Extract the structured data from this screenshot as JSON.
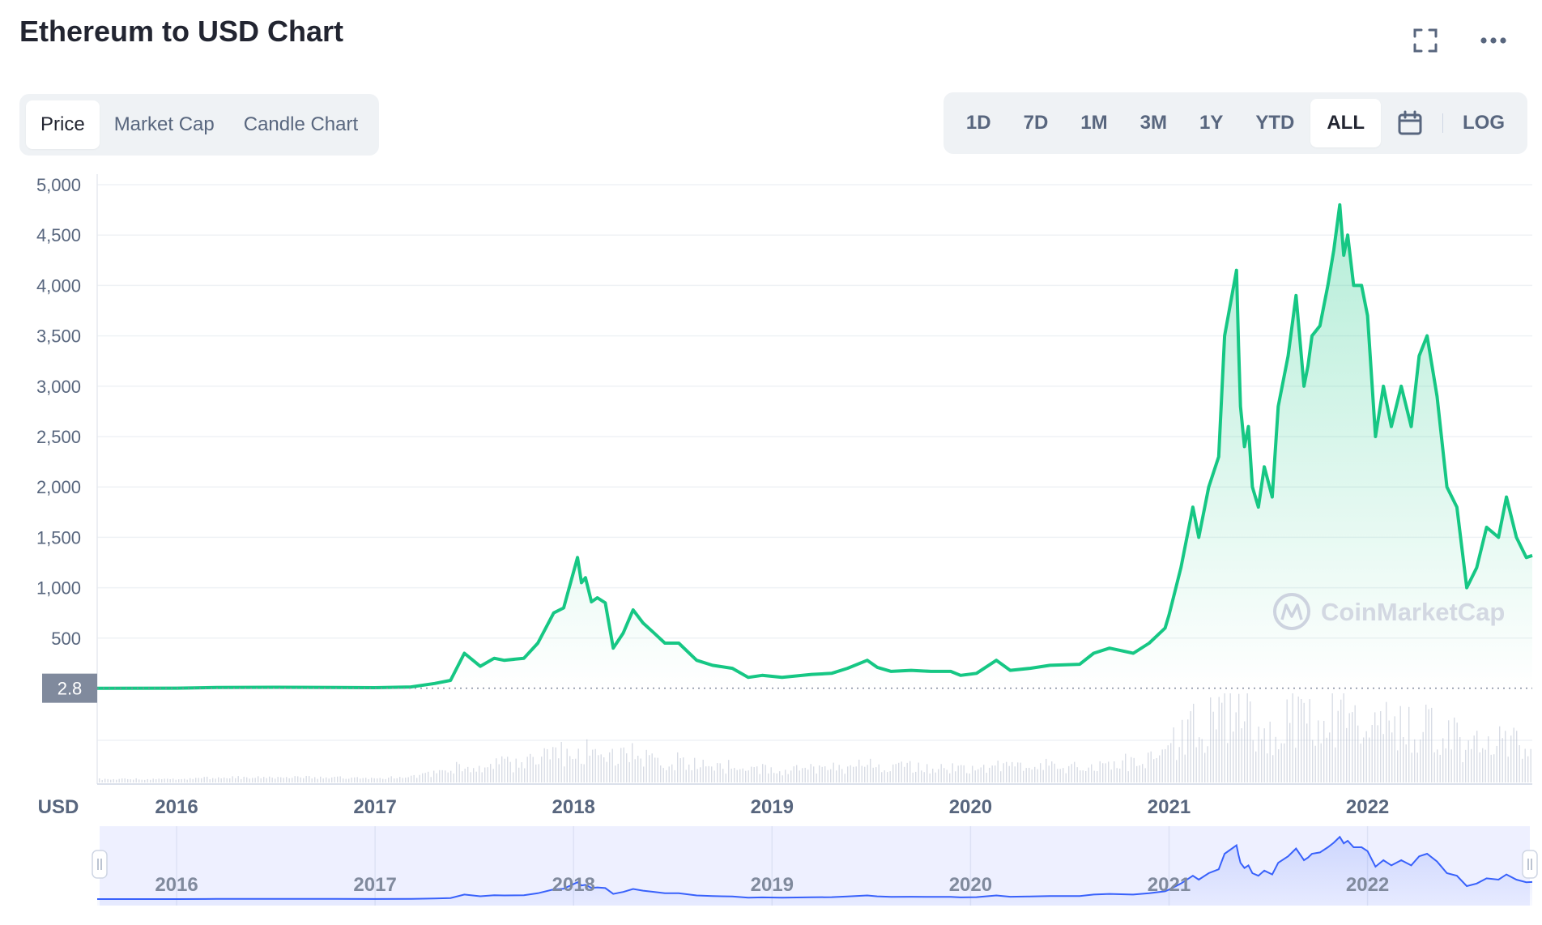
{
  "header": {
    "title": "Ethereum to USD Chart",
    "fullscreen_icon": "expand-icon",
    "more_icon": "more-dots-icon"
  },
  "tabs": [
    {
      "label": "Price",
      "active": true
    },
    {
      "label": "Market Cap",
      "active": false
    },
    {
      "label": "Candle Chart",
      "active": false
    }
  ],
  "ranges": [
    {
      "label": "1D",
      "active": false
    },
    {
      "label": "7D",
      "active": false
    },
    {
      "label": "1M",
      "active": false
    },
    {
      "label": "3M",
      "active": false
    },
    {
      "label": "1Y",
      "active": false
    },
    {
      "label": "YTD",
      "active": false
    },
    {
      "label": "ALL",
      "active": true
    }
  ],
  "calendar_icon": "calendar-icon",
  "log_label": "LOG",
  "watermark": "CoinMarketCap",
  "colors": {
    "line": "#16c784",
    "navigator_line": "#3861fb",
    "navigator_fill": "#eef0ff",
    "grid": "#eff2f5",
    "axis_text": "#58667e",
    "price_tag_bg": "#808a9d"
  },
  "chart_data": {
    "type": "area",
    "currency_label": "USD",
    "current_price_label": "2.8",
    "baseline": 2.8,
    "ylim": [
      0,
      5000
    ],
    "y_ticks": [
      500,
      1000,
      1500,
      2000,
      2500,
      3000,
      3500,
      4000,
      4500,
      5000
    ],
    "y_tick_labels": [
      "500",
      "1,000",
      "1,500",
      "2,000",
      "2,500",
      "3,000",
      "3,500",
      "4,000",
      "4,500",
      "5,000"
    ],
    "xlim": [
      2015.6,
      2022.83
    ],
    "x_ticks": [
      2016,
      2017,
      2018,
      2019,
      2020,
      2021,
      2022
    ],
    "x_tick_labels": [
      "2016",
      "2017",
      "2018",
      "2019",
      "2020",
      "2021",
      "2022"
    ],
    "series": [
      {
        "x": [
          2015.6,
          2016.0,
          2016.2,
          2016.5,
          2016.8,
          2017.0,
          2017.18,
          2017.3,
          2017.38,
          2017.45,
          2017.53,
          2017.6,
          2017.65,
          2017.75,
          2017.82,
          2017.9,
          2017.95,
          2018.02,
          2018.04,
          2018.06,
          2018.09,
          2018.12,
          2018.16,
          2018.2,
          2018.25,
          2018.3,
          2018.35,
          2018.4,
          2018.46,
          2018.53,
          2018.62,
          2018.7,
          2018.8,
          2018.88,
          2018.95,
          2019.05,
          2019.2,
          2019.3,
          2019.38,
          2019.48,
          2019.53,
          2019.6,
          2019.7,
          2019.8,
          2019.9,
          2019.95,
          2020.03,
          2020.13,
          2020.2,
          2020.3,
          2020.4,
          2020.55,
          2020.62,
          2020.7,
          2020.82,
          2020.9,
          2020.98,
          2021.0,
          2021.06,
          2021.12,
          2021.15,
          2021.2,
          2021.25,
          2021.28,
          2021.34,
          2021.35,
          2021.36,
          2021.38,
          2021.4,
          2021.42,
          2021.45,
          2021.48,
          2021.52,
          2021.55,
          2021.6,
          2021.64,
          2021.68,
          2021.7,
          2021.72,
          2021.76,
          2021.8,
          2021.83,
          2021.86,
          2021.88,
          2021.9,
          2021.93,
          2021.97,
          2022.0,
          2022.04,
          2022.08,
          2022.12,
          2022.17,
          2022.22,
          2022.26,
          2022.3,
          2022.35,
          2022.4,
          2022.45,
          2022.5,
          2022.55,
          2022.6,
          2022.66,
          2022.7,
          2022.75,
          2022.8,
          2022.83
        ],
        "y": [
          2.8,
          3,
          10,
          12,
          10,
          8,
          15,
          50,
          80,
          350,
          220,
          300,
          280,
          300,
          450,
          750,
          800,
          1300,
          1050,
          1100,
          860,
          900,
          850,
          400,
          550,
          780,
          650,
          560,
          450,
          450,
          280,
          230,
          200,
          110,
          130,
          110,
          140,
          150,
          200,
          280,
          210,
          170,
          180,
          170,
          170,
          130,
          150,
          280,
          180,
          200,
          230,
          240,
          350,
          400,
          350,
          450,
          600,
          730,
          1200,
          1800,
          1500,
          2000,
          2300,
          3500,
          4150,
          3400,
          2800,
          2400,
          2600,
          2000,
          1800,
          2200,
          1900,
          2800,
          3300,
          3900,
          3000,
          3200,
          3500,
          3600,
          4000,
          4350,
          4800,
          4300,
          4500,
          4000,
          4000,
          3700,
          2500,
          3000,
          2600,
          3000,
          2600,
          3300,
          3500,
          2900,
          2000,
          1800,
          1000,
          1200,
          1600,
          1500,
          1900,
          1500,
          1300,
          1320
        ]
      }
    ]
  }
}
